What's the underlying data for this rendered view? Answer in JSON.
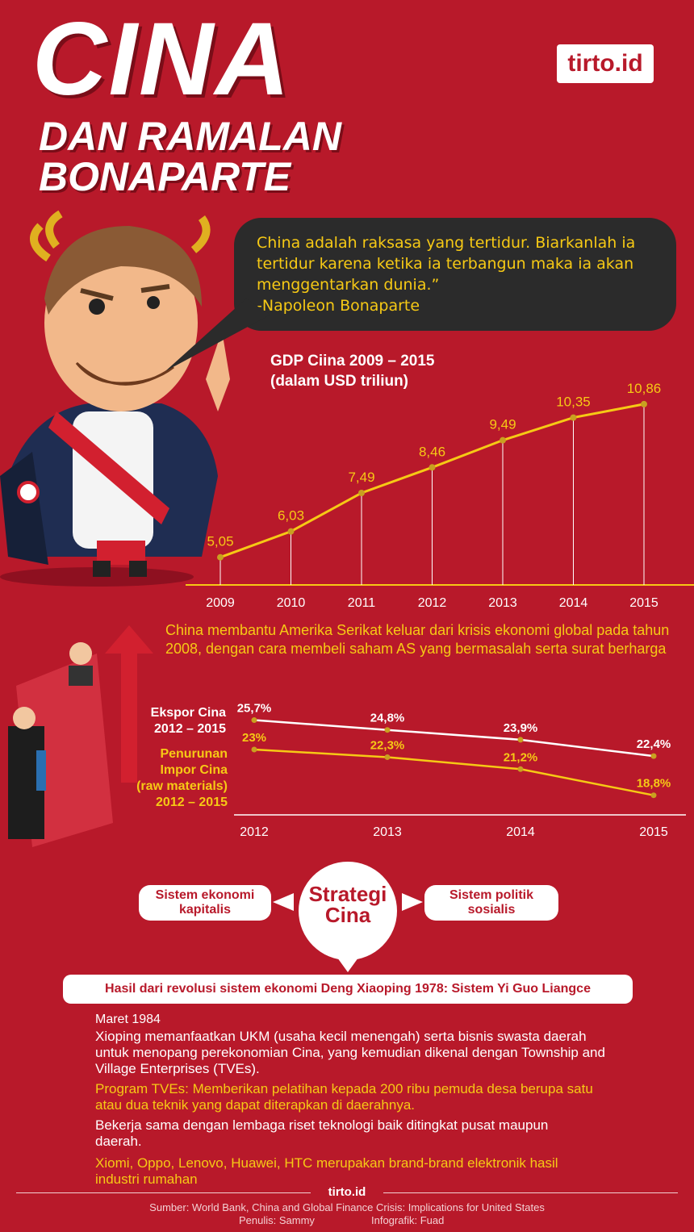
{
  "title": {
    "line1": "CINA",
    "line2": "DAN RAMALAN",
    "line3": "BONAPARTE"
  },
  "logo": "tirto.id",
  "quote": {
    "text": "China adalah raksasa yang tertidur. Biarkanlah ia tertidur karena ketika ia terbangun maka ia akan menggentarkan dunia.”",
    "author": "-Napoleon Bonaparte"
  },
  "colors": {
    "background": "#b8192a",
    "accent": "#f6c915",
    "white_line": "#ffffff"
  },
  "chart_data": [
    {
      "type": "line",
      "title": "GDP Ciina 2009 – 2015",
      "subtitle": "(dalam USD triliun)",
      "x": [
        "2009",
        "2010",
        "2011",
        "2012",
        "2013",
        "2014",
        "2015"
      ],
      "series": [
        {
          "values": [
            5.05,
            6.03,
            7.49,
            8.46,
            9.49,
            10.35,
            10.86
          ],
          "labels": [
            "5,05",
            "6,03",
            "7,49",
            "8,46",
            "9,49",
            "10,35",
            "10,86"
          ],
          "color": "#f6c915"
        }
      ],
      "ylim": [
        4,
        11.5
      ]
    },
    {
      "type": "line",
      "x": [
        "2012",
        "2013",
        "2014",
        "2015"
      ],
      "series": [
        {
          "name": "Ekspor Cina 2012 – 2015",
          "values": [
            25.7,
            24.8,
            23.9,
            22.4
          ],
          "labels": [
            "25,7%",
            "24,8%",
            "23,9%",
            "22,4%"
          ],
          "color": "#ffffff"
        },
        {
          "name": "Penurunan Impor Cina (raw materials) 2012 – 2015",
          "values": [
            23,
            22.3,
            21.2,
            18.8
          ],
          "labels": [
            "23%",
            "22,3%",
            "21,2%",
            "18,8%"
          ],
          "color": "#f6c915"
        }
      ],
      "ylim": [
        17,
        27
      ]
    }
  ],
  "crisis_text": "China membantu Amerika Serikat keluar dari krisis ekonomi global pada tahun 2008, dengan cara membeli saham AS yang bermasalah serta surat berharga",
  "legend": {
    "ekspor": "Ekspor Cina\n2012 – 2015",
    "impor": "Penurunan\nImpor Cina\n(raw materials)\n2012 – 2015"
  },
  "strategy": {
    "center": "Strategi\nCina",
    "left": "Sistem ekonomi\nkapitalis",
    "right": "Sistem politik\nsosialis",
    "result": "Hasil dari revolusi sistem ekonomi Deng Xiaoping 1978: Sistem Yi Guo Liangce"
  },
  "details": {
    "date": "Maret 1984",
    "p1": "Xioping memanfaatkan UKM (usaha kecil menengah) serta bisnis swasta daerah untuk menopang perekonomian Cina, yang kemudian dikenal dengan Township and Village Enterprises (TVEs).",
    "p2": "Program TVEs:  Memberikan pelatihan kepada 200 ribu pemuda desa berupa satu atau dua teknik yang dapat diterapkan di daerahnya.",
    "p3": "Bekerja sama dengan lembaga riset teknologi baik ditingkat pusat maupun daerah.",
    "p4": "Xiomi, Oppo, Lenovo, Huawei, HTC merupakan brand-brand elektronik hasil industri rumahan"
  },
  "footer": {
    "brand": "tirto.id",
    "source": "Sumber: World Bank, China and Global Finance Crisis: Implications for United States",
    "writer": "Penulis: Sammy",
    "designer": "Infografik: Fuad"
  }
}
